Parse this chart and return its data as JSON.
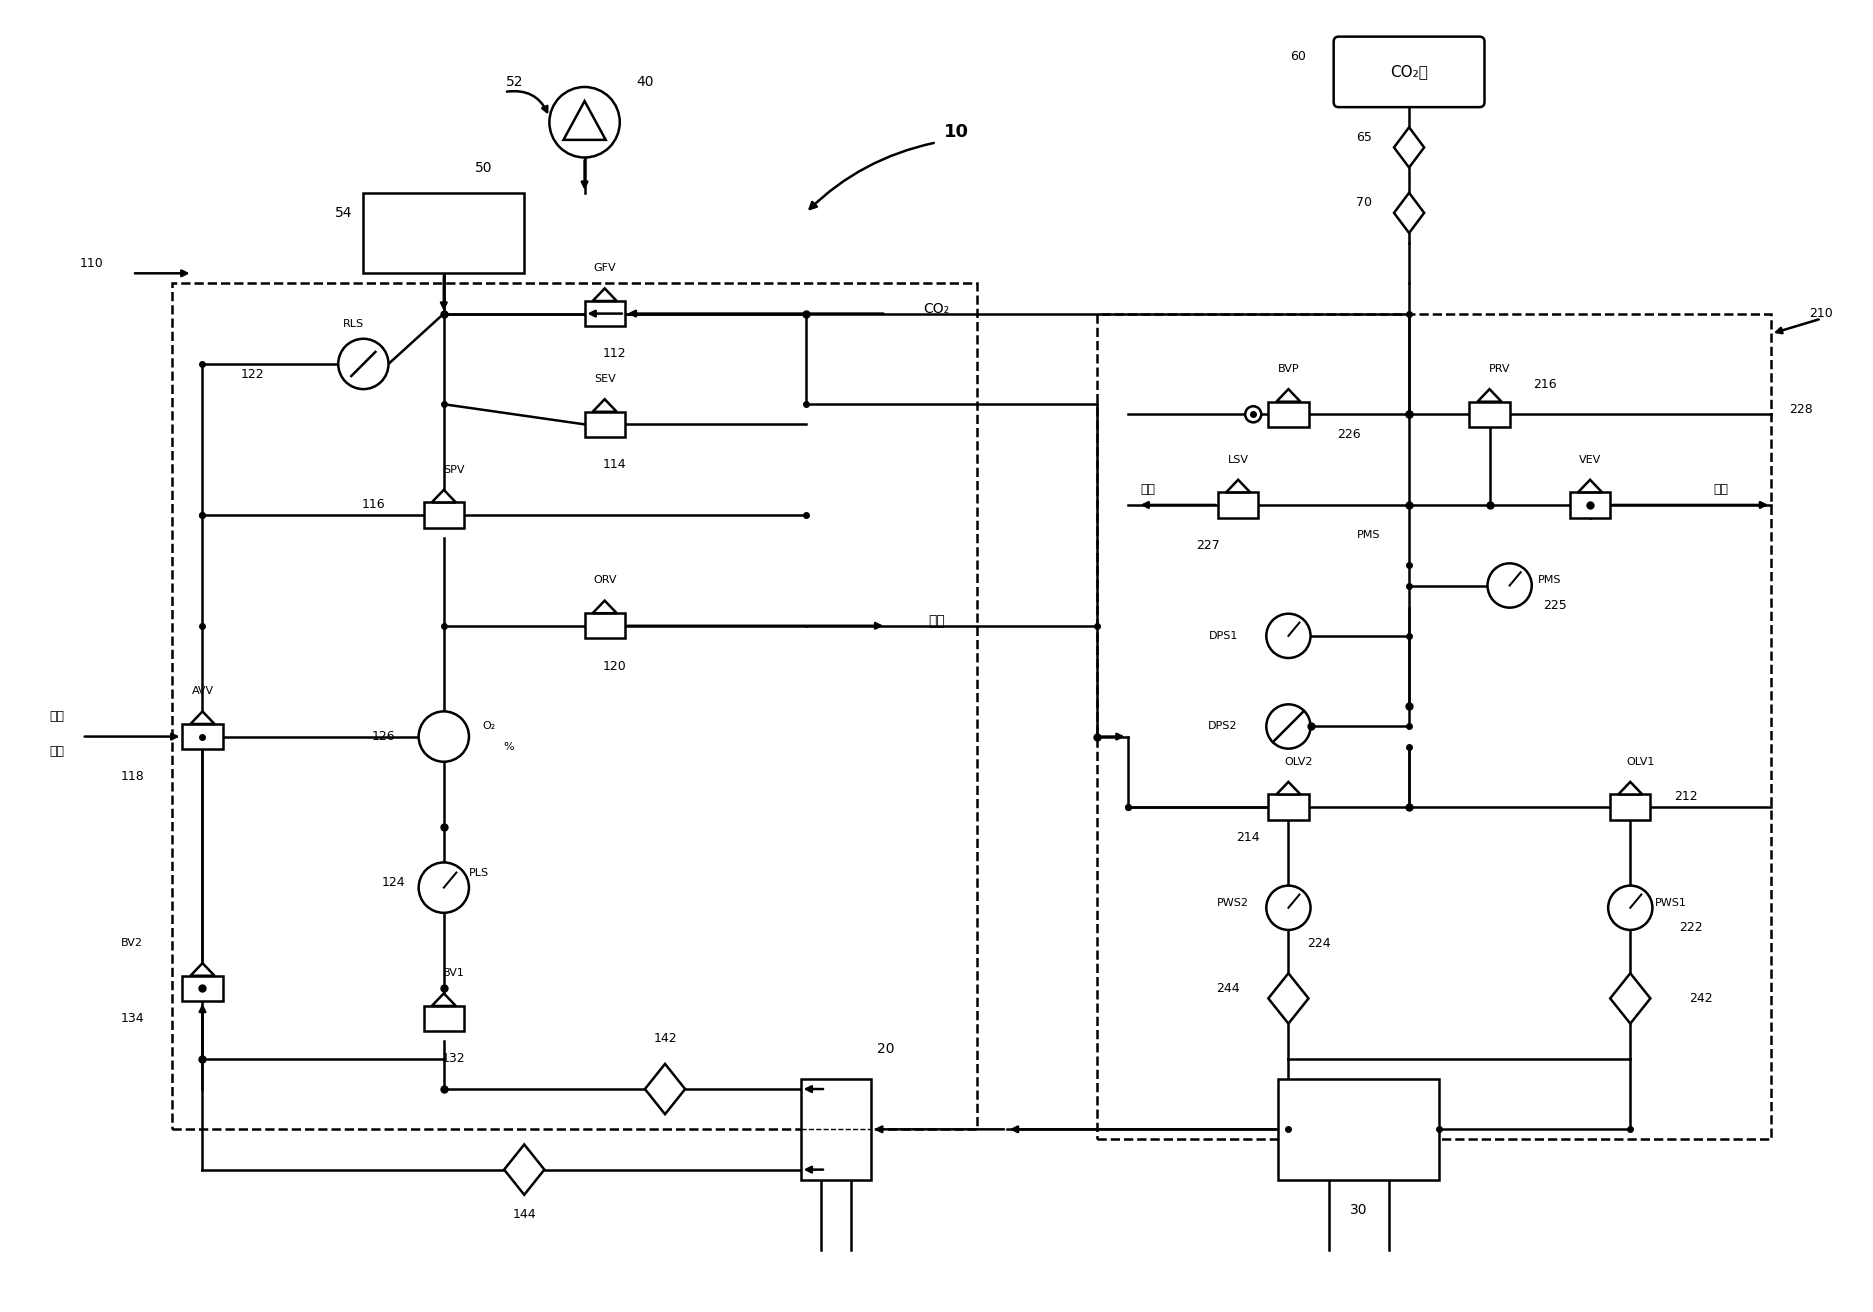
{
  "bg": "#ffffff",
  "lc": "#000000",
  "lw": 1.8,
  "fw": 18.73,
  "fh": 13.12,
  "xlim": [
    0,
    186
  ],
  "ylim": [
    0,
    130
  ]
}
